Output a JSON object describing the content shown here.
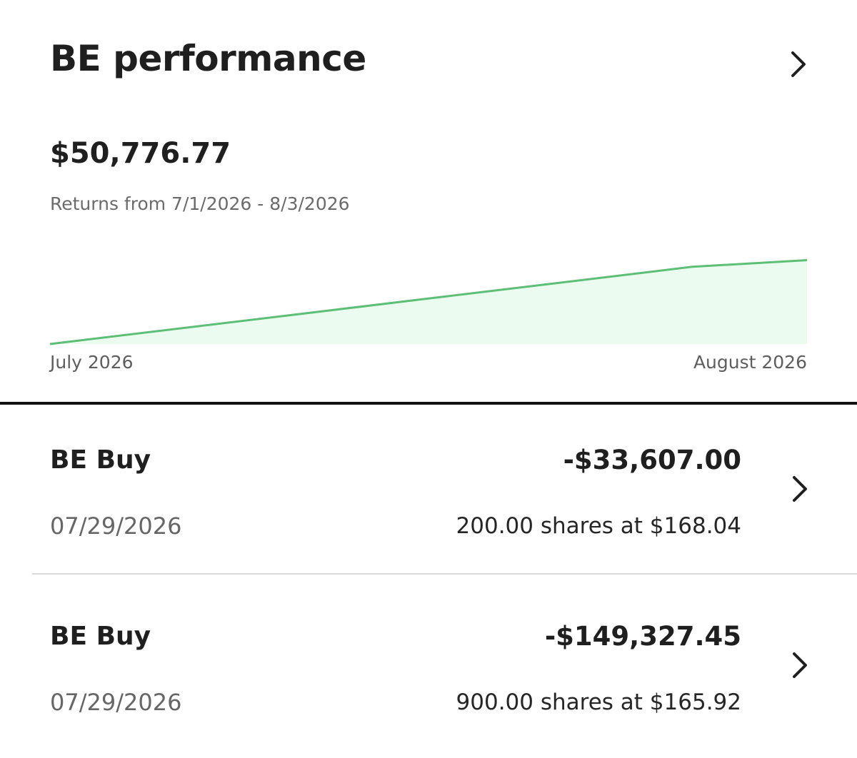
{
  "performance": {
    "title": "BE performance",
    "value": "$50,776.77",
    "range_text": "Returns from 7/1/2026 - 8/3/2026",
    "chevron_icon": "chevron-right-icon"
  },
  "chart_data": {
    "type": "area",
    "title": "",
    "xlabel": "",
    "ylabel": "",
    "x_tick_labels": [
      "July 2026",
      "August 2026"
    ],
    "x": [
      "7/1/2026",
      "7/29/2026",
      "8/3/2026"
    ],
    "series": [
      {
        "values": [
          0,
          0.82,
          0.89
        ]
      }
    ],
    "ylim": [
      0,
      1
    ],
    "grid": false,
    "line_color": "#5cbf75",
    "fill_color": "#ecfbf0"
  },
  "transactions": [
    {
      "title": "BE Buy",
      "amount": "-$33,607.00",
      "date": "07/29/2026",
      "detail": "200.00 shares at $168.04",
      "chevron_icon": "chevron-right-icon"
    },
    {
      "title": "BE Buy",
      "amount": "-$149,327.45",
      "date": "07/29/2026",
      "detail": "900.00 shares at $165.92",
      "chevron_icon": "chevron-right-icon"
    }
  ]
}
